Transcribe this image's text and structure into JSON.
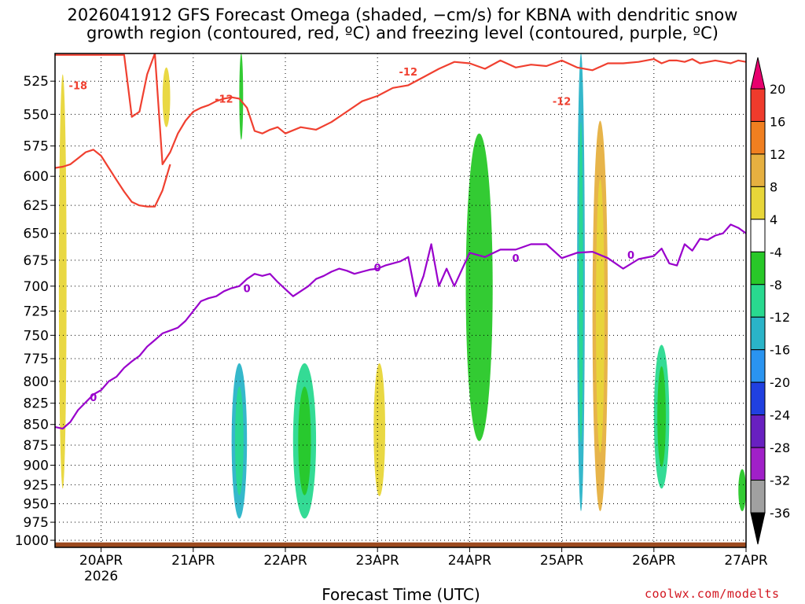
{
  "title": {
    "line1": "2026041912 GFS Forecast Omega (shaded, −cm/s) for KBNA with dendritic snow",
    "line2": "growth region (contoured, red, ºC) and freezing level (contoured, purple, ºC)"
  },
  "xlabel": "Forecast Time (UTC)",
  "credit": "coolwx.com/modelts",
  "chart_data": {
    "type": "heatmap",
    "xlabel": "Forecast Time (UTC)",
    "x_ticks": [
      "20APR",
      "21APR",
      "22APR",
      "23APR",
      "24APR",
      "25APR",
      "26APR",
      "27APR"
    ],
    "x_year_label": "2026",
    "xlim_hours_from_20APR_00Z": [
      -12,
      168
    ],
    "y_ticks": [
      525,
      550,
      575,
      600,
      625,
      650,
      675,
      700,
      725,
      750,
      775,
      800,
      825,
      850,
      875,
      900,
      925,
      950,
      975,
      1000
    ],
    "ylim_hPa": [
      505,
      1010
    ],
    "y_axis": "log pressure (hPa), inverted",
    "grid": true,
    "colorbar": {
      "ticks": [
        20,
        16,
        12,
        8,
        4,
        -4,
        -8,
        -12,
        -16,
        -20,
        -24,
        -28,
        -32,
        -36
      ],
      "colors": [
        "#e8006e",
        "#ef3b2c",
        "#f07f20",
        "#e6b040",
        "#e8d639",
        "#ffffff",
        "#28c828",
        "#29d98f",
        "#2ab4c8",
        "#2a94f0",
        "#2040e0",
        "#6820c0",
        "#a020c8",
        "#a0a0a0",
        "#000000"
      ],
      "extends": "both"
    },
    "contour_labels": [
      "-18",
      "-12",
      "-12",
      "-12",
      "0",
      "0",
      "0",
      "0",
      "0"
    ],
    "freezing_level_0C": {
      "color": "#9900cc",
      "hours": [
        -12,
        -10,
        -8,
        -6,
        -2,
        0,
        2,
        4,
        6,
        8,
        10,
        12,
        14,
        16,
        18,
        20,
        22,
        24,
        26,
        28,
        30,
        32,
        34,
        36,
        38,
        40,
        42,
        44,
        46,
        48,
        50,
        52,
        54,
        56,
        58,
        60,
        62,
        64,
        66,
        68,
        70,
        72,
        74,
        76,
        78,
        80,
        82,
        84,
        86,
        88,
        90,
        92,
        96,
        100,
        104,
        108,
        112,
        116,
        120,
        124,
        128,
        132,
        136,
        140,
        144,
        146,
        148,
        150,
        152,
        154,
        156,
        158,
        160,
        162,
        164,
        166,
        168
      ],
      "hPa": [
        853,
        855,
        847,
        833,
        815,
        810,
        800,
        795,
        785,
        778,
        772,
        762,
        755,
        748,
        745,
        742,
        735,
        725,
        715,
        712,
        710,
        705,
        702,
        700,
        693,
        688,
        690,
        688,
        696,
        703,
        710,
        705,
        700,
        693,
        690,
        686,
        683,
        685,
        688,
        686,
        684,
        683,
        680,
        678,
        676,
        672,
        710,
        690,
        660,
        700,
        683,
        700,
        668,
        672,
        665,
        665,
        660,
        660,
        673,
        668,
        667,
        673,
        683,
        674,
        671,
        664,
        678,
        680,
        660,
        666,
        655,
        656,
        652,
        650,
        642,
        645,
        650
      ]
    },
    "isotherm_minus12C": {
      "color": "#f04030",
      "hours": [
        -12,
        -10,
        -8,
        -6,
        -2,
        0,
        2,
        4,
        6,
        8,
        10,
        12,
        14,
        16,
        18,
        20,
        22,
        24,
        26,
        28,
        30,
        32,
        34,
        36,
        38,
        40,
        42,
        44,
        46,
        48,
        52,
        56,
        60,
        64,
        68,
        72,
        76,
        80,
        84,
        88,
        92,
        96,
        100,
        104,
        108,
        112,
        116,
        120,
        124,
        128,
        132,
        136,
        140,
        144,
        146,
        148,
        150,
        152,
        154,
        156,
        158,
        160,
        162,
        164,
        166,
        168
      ],
      "hPa": [
        506,
        506,
        506,
        506,
        506,
        506,
        506,
        506,
        506,
        552,
        548,
        520,
        505,
        590,
        580,
        565,
        555,
        548,
        545,
        543,
        540,
        538,
        537,
        538,
        545,
        563,
        565,
        562,
        560,
        565,
        560,
        562,
        556,
        548,
        540,
        536,
        530,
        528,
        522,
        516,
        511,
        512,
        516,
        510,
        515,
        513,
        514,
        510,
        515,
        517,
        512,
        512,
        511,
        509,
        512,
        510,
        510,
        511,
        509,
        512,
        511,
        510,
        511,
        512,
        510,
        511
      ]
    },
    "isotherm_minus18C": {
      "color": "#f04030",
      "hours": [
        -12,
        -10,
        -8,
        -6,
        -4,
        -2,
        0,
        2,
        4,
        6,
        8,
        10,
        12,
        14,
        16,
        18
      ],
      "hPa": [
        593,
        592,
        590,
        585,
        580,
        578,
        583,
        593,
        603,
        613,
        622,
        625,
        626,
        626,
        612,
        590
      ]
    },
    "omega_regions_cm_s": [
      {
        "hours": [
          -11,
          -9
        ],
        "hPa": [
          520,
          930
        ],
        "value": 5
      },
      {
        "hours": [
          16,
          18
        ],
        "hPa": [
          515,
          560
        ],
        "value": 5
      },
      {
        "hours": [
          36,
          37
        ],
        "hPa": [
          505,
          570
        ],
        "value": -6
      },
      {
        "hours": [
          34,
          38
        ],
        "hPa": [
          780,
          970
        ],
        "value": -15
      },
      {
        "hours": [
          50,
          56
        ],
        "hPa": [
          780,
          970
        ],
        "value": -12
      },
      {
        "hours": [
          71,
          74
        ],
        "hPa": [
          780,
          940
        ],
        "value": 6
      },
      {
        "hours": [
          95,
          102
        ],
        "hPa": [
          565,
          870
        ],
        "value": -6
      },
      {
        "hours": [
          124,
          126
        ],
        "hPa": [
          505,
          960
        ],
        "value": -14
      },
      {
        "hours": [
          128,
          132
        ],
        "hPa": [
          555,
          960
        ],
        "value": 11
      },
      {
        "hours": [
          144,
          148
        ],
        "hPa": [
          760,
          930
        ],
        "value": -12
      },
      {
        "hours": [
          166,
          168
        ],
        "hPa": [
          905,
          960
        ],
        "value": -7
      }
    ]
  }
}
